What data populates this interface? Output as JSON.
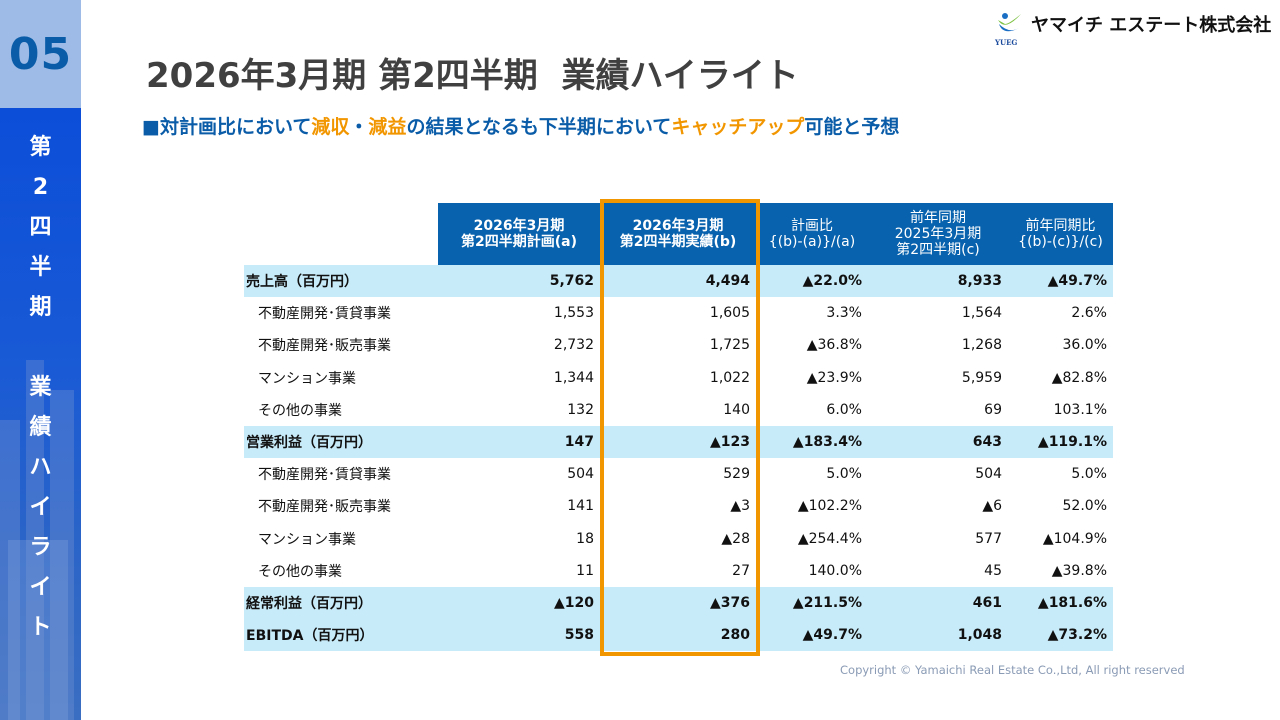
{
  "section": {
    "number": "05",
    "vertical_chars": [
      "第",
      "2",
      "四",
      "半",
      "期",
      " ",
      "業",
      "績",
      "ハ",
      "イ",
      "ラ",
      "イ",
      "ト"
    ]
  },
  "header": {
    "title": "2026年3月期 第2四半期  業績ハイライト",
    "company": "ヤマイチ エステート株式会社",
    "logo_text": "YUEG"
  },
  "subtitle": {
    "segments": [
      {
        "text": "■対計画比において",
        "color": "#0a5ca8"
      },
      {
        "text": "減収",
        "color": "#f29600"
      },
      {
        "text": "・",
        "color": "#0a5ca8"
      },
      {
        "text": "減益",
        "color": "#f29600"
      },
      {
        "text": "の結果となるも下半期において",
        "color": "#0a5ca8"
      },
      {
        "text": "キャッチアップ",
        "color": "#f29600"
      },
      {
        "text": "可能と予想",
        "color": "#0a5ca8"
      }
    ]
  },
  "table": {
    "headers": [
      "2026年3月期\n第2四半期計画(a)",
      "2026年3月期\n第2四半期実績(b)",
      "計画比\n{(b)-(a)}/(a)",
      "前年同期\n2025年3月期\n第2四半期(c)",
      "前年同期比\n{(b)-(c)}/(c)"
    ],
    "rows": [
      {
        "type": "hl",
        "cells": [
          "売上高（百万円）",
          "5,762",
          "4,494",
          "▲22.0%",
          "8,933",
          "▲49.7%"
        ]
      },
      {
        "type": "sub",
        "cells": [
          "不動産開発･賃貸事業",
          "1,553",
          "1,605",
          "3.3%",
          "1,564",
          "2.6%"
        ]
      },
      {
        "type": "sub",
        "cells": [
          "不動産開発･販売事業",
          "2,732",
          "1,725",
          "▲36.8%",
          "1,268",
          "36.0%"
        ]
      },
      {
        "type": "sub",
        "cells": [
          "マンション事業",
          "1,344",
          "1,022",
          "▲23.9%",
          "5,959",
          "▲82.8%"
        ]
      },
      {
        "type": "sub",
        "cells": [
          "その他の事業",
          "132",
          "140",
          "6.0%",
          "69",
          "103.1%"
        ]
      },
      {
        "type": "hl",
        "cells": [
          "営業利益（百万円）",
          "147",
          "▲123",
          "▲183.4%",
          "643",
          "▲119.1%"
        ]
      },
      {
        "type": "sub",
        "cells": [
          "不動産開発･賃貸事業",
          "504",
          "529",
          "5.0%",
          "504",
          "5.0%"
        ]
      },
      {
        "type": "sub",
        "cells": [
          "不動産開発･販売事業",
          "141",
          "▲3",
          "▲102.2%",
          "▲6",
          "52.0%"
        ]
      },
      {
        "type": "sub",
        "cells": [
          "マンション事業",
          "18",
          "▲28",
          "▲254.4%",
          "577",
          "▲104.9%"
        ]
      },
      {
        "type": "sub",
        "cells": [
          "その他の事業",
          "11",
          "27",
          "140.0%",
          "45",
          "▲39.8%"
        ]
      },
      {
        "type": "hl",
        "cells": [
          "経常利益（百万円）",
          "▲120",
          "▲376",
          "▲211.5%",
          "461",
          "▲181.6%"
        ]
      },
      {
        "type": "hl",
        "cells": [
          "EBITDA（百万円）",
          "558",
          "280",
          "▲49.7%",
          "1,048",
          "▲73.2%"
        ]
      }
    ]
  },
  "footer": {
    "copyright": "Copyright © Yamaichi Real Estate Co.,Ltd, All right reserved"
  },
  "colors": {
    "primary": "#0862ad",
    "accent": "#f29600",
    "highlight_row": "#c8ebf9"
  }
}
